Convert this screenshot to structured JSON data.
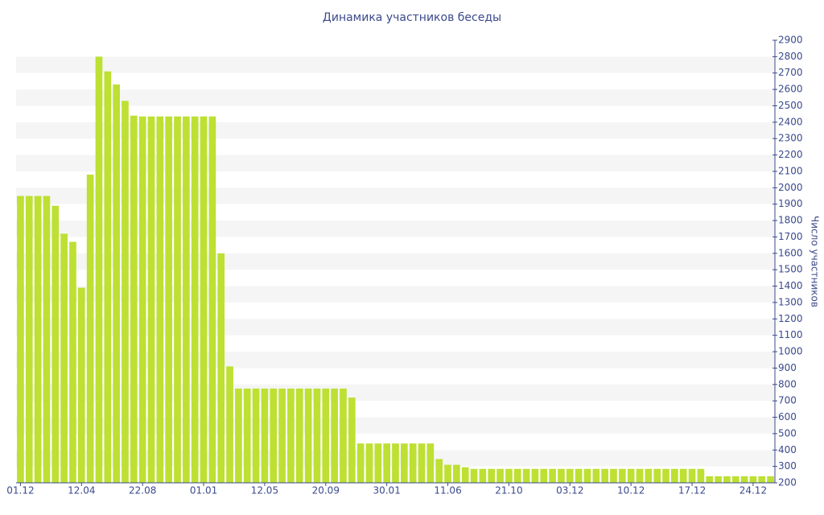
{
  "chart_data": {
    "type": "bar",
    "title": "Динамика участников беседы",
    "y_label": "Число участников",
    "categories": [
      "01.12",
      null,
      null,
      null,
      null,
      null,
      null,
      "12.04",
      null,
      null,
      null,
      null,
      null,
      null,
      "22.08",
      null,
      null,
      null,
      null,
      null,
      null,
      "01.01",
      null,
      null,
      null,
      null,
      null,
      null,
      "12.05",
      null,
      null,
      null,
      null,
      null,
      null,
      "20.09",
      null,
      null,
      null,
      null,
      null,
      null,
      "30.01",
      null,
      null,
      null,
      null,
      null,
      null,
      "11.06",
      null,
      null,
      null,
      null,
      null,
      null,
      "21.10",
      null,
      null,
      null,
      null,
      null,
      null,
      "03.12",
      null,
      null,
      null,
      null,
      null,
      null,
      "10.12",
      null,
      null,
      null,
      null,
      null,
      null,
      "17.12",
      null,
      null,
      null,
      null,
      null,
      null,
      "24.12",
      null,
      null
    ],
    "values": [
      1950,
      1950,
      1950,
      1950,
      1890,
      1720,
      1670,
      1390,
      2080,
      2800,
      2710,
      2630,
      2530,
      2440,
      2435,
      2435,
      2435,
      2435,
      2435,
      2435,
      2435,
      2435,
      2435,
      1600,
      910,
      775,
      775,
      775,
      775,
      775,
      775,
      775,
      775,
      775,
      775,
      775,
      775,
      775,
      720,
      440,
      440,
      440,
      440,
      440,
      440,
      440,
      440,
      440,
      345,
      310,
      310,
      295,
      285,
      285,
      285,
      285,
      285,
      285,
      285,
      285,
      285,
      285,
      285,
      285,
      285,
      285,
      285,
      285,
      285,
      285,
      285,
      285,
      285,
      285,
      285,
      285,
      285,
      285,
      285,
      240,
      240,
      240,
      240,
      240,
      240,
      240,
      240
    ],
    "color": "#bde033",
    "ylim": [
      200,
      2900
    ],
    "yticks": [
      200,
      300,
      400,
      500,
      600,
      700,
      800,
      900,
      1000,
      1100,
      1200,
      1300,
      1400,
      1500,
      1600,
      1700,
      1800,
      1900,
      2000,
      2100,
      2200,
      2300,
      2400,
      2500,
      2600,
      2700,
      2800,
      2900
    ],
    "grid": true
  }
}
